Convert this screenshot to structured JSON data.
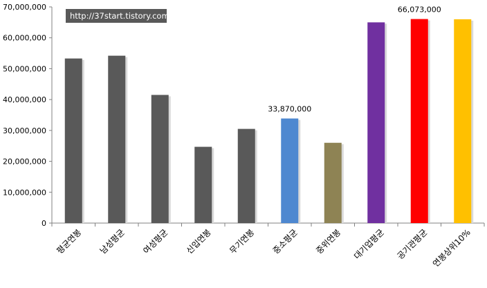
{
  "watermark": "http://37start.tistory.com",
  "chart_data": {
    "type": "bar",
    "categories": [
      "평균연봉",
      "남성평균",
      "여성평균",
      "신입연봉",
      "무기연봉",
      "중소평균",
      "중위연봉",
      "대기업평균",
      "공기관평균",
      "연봉상위10%"
    ],
    "values": [
      53300000,
      54200000,
      41500000,
      24700000,
      30500000,
      33870000,
      26000000,
      65000000,
      66073000,
      66000000
    ],
    "colors": [
      "#595959",
      "#595959",
      "#595959",
      "#595959",
      "#595959",
      "#4e88d0",
      "#8e8354",
      "#7030a0",
      "#ff0000",
      "#ffc000"
    ],
    "data_labels": [
      {
        "index": 5,
        "text": "33,870,000"
      },
      {
        "index": 8,
        "text": "66,073,000"
      }
    ],
    "ylim": [
      0,
      70000000
    ],
    "y_ticks": [
      "0",
      "10,000,000",
      "20,000,000",
      "30,000,000",
      "40,000,000",
      "50,000,000",
      "60,000,000",
      "70,000,000"
    ],
    "grid": false,
    "legend": "none",
    "title": "",
    "xlabel": "",
    "ylabel": ""
  }
}
